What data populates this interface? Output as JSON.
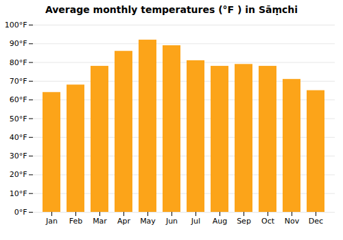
{
  "chart_data": {
    "type": "bar",
    "title": "Average monthly temperatures (°F ) in Sāṃchi",
    "categories": [
      "Jan",
      "Feb",
      "Mar",
      "Apr",
      "May",
      "Jun",
      "Jul",
      "Aug",
      "Sep",
      "Oct",
      "Nov",
      "Dec"
    ],
    "values": [
      64,
      68,
      78,
      86,
      92,
      89,
      81,
      78,
      79,
      78,
      71,
      65
    ],
    "color": "#FCA419",
    "ylim": [
      0,
      100
    ],
    "yticks": [
      {
        "value": 0,
        "label": "0°F"
      },
      {
        "value": 10,
        "label": "10°F"
      },
      {
        "value": 20,
        "label": "20°F"
      },
      {
        "value": 30,
        "label": "30°F"
      },
      {
        "value": 40,
        "label": "40°F"
      },
      {
        "value": 50,
        "label": "50°F"
      },
      {
        "value": 60,
        "label": "60°F"
      },
      {
        "value": 70,
        "label": "70°F"
      },
      {
        "value": 80,
        "label": "80°F"
      },
      {
        "value": 90,
        "label": "90°F"
      },
      {
        "value": 100,
        "label": "100°F"
      }
    ],
    "grid": true
  }
}
